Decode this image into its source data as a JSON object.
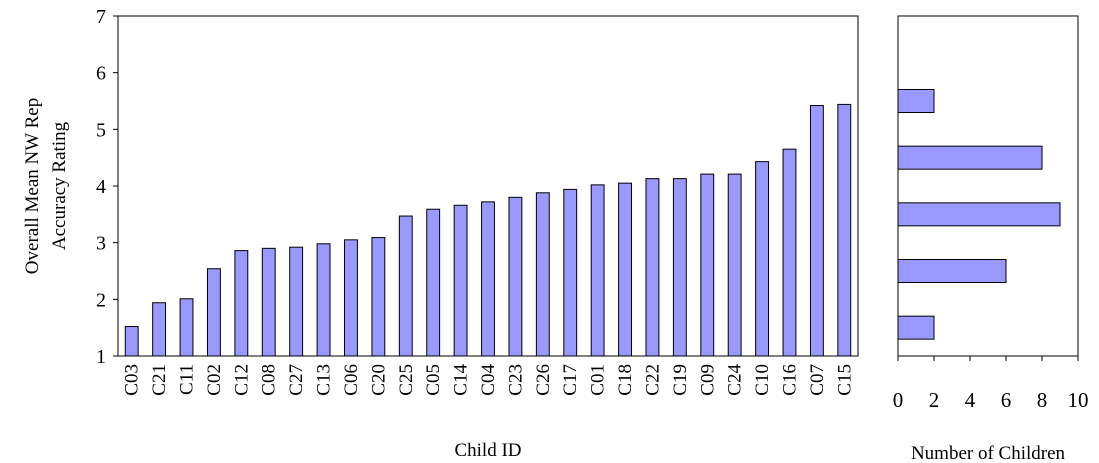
{
  "colors": {
    "bar_fill": "#9999ff",
    "bar_stroke": "#000000",
    "axis": "#000000",
    "background": "#ffffff"
  },
  "chart_data": [
    {
      "type": "bar",
      "title": "",
      "xlabel": "Child ID",
      "ylabel_lines": [
        "Overall Mean NW Rep",
        "Accuracy Rating"
      ],
      "ylim": [
        1,
        7
      ],
      "yticks": [
        1,
        2,
        3,
        4,
        5,
        6,
        7
      ],
      "grid": false,
      "legend": "none",
      "categories": [
        "C03",
        "C21",
        "C11",
        "C02",
        "C12",
        "C08",
        "C27",
        "C13",
        "C06",
        "C20",
        "C25",
        "C05",
        "C14",
        "C04",
        "C23",
        "C26",
        "C17",
        "C01",
        "C18",
        "C22",
        "C19",
        "C09",
        "C24",
        "C10",
        "C16",
        "C07",
        "C15"
      ],
      "values": [
        1.52,
        1.94,
        2.01,
        2.54,
        2.86,
        2.9,
        2.92,
        2.98,
        3.05,
        3.09,
        3.47,
        3.59,
        3.66,
        3.72,
        3.8,
        3.88,
        3.94,
        4.02,
        4.05,
        4.13,
        4.13,
        4.21,
        4.21,
        4.43,
        4.65,
        5.42,
        5.44
      ]
    },
    {
      "type": "bar",
      "orientation": "horizontal",
      "title": "",
      "xlabel": "Number of Children",
      "xlim": [
        0,
        10
      ],
      "xticks": [
        0,
        2,
        4,
        6,
        8,
        10
      ],
      "shares_y_axis_with": "Overall Mean NW Rep Accuracy Rating",
      "grid": false,
      "legend": "none",
      "bins": [
        {
          "center": 1.5,
          "count": 2
        },
        {
          "center": 2.5,
          "count": 6
        },
        {
          "center": 3.5,
          "count": 9
        },
        {
          "center": 4.5,
          "count": 8
        },
        {
          "center": 5.5,
          "count": 2
        }
      ]
    }
  ]
}
